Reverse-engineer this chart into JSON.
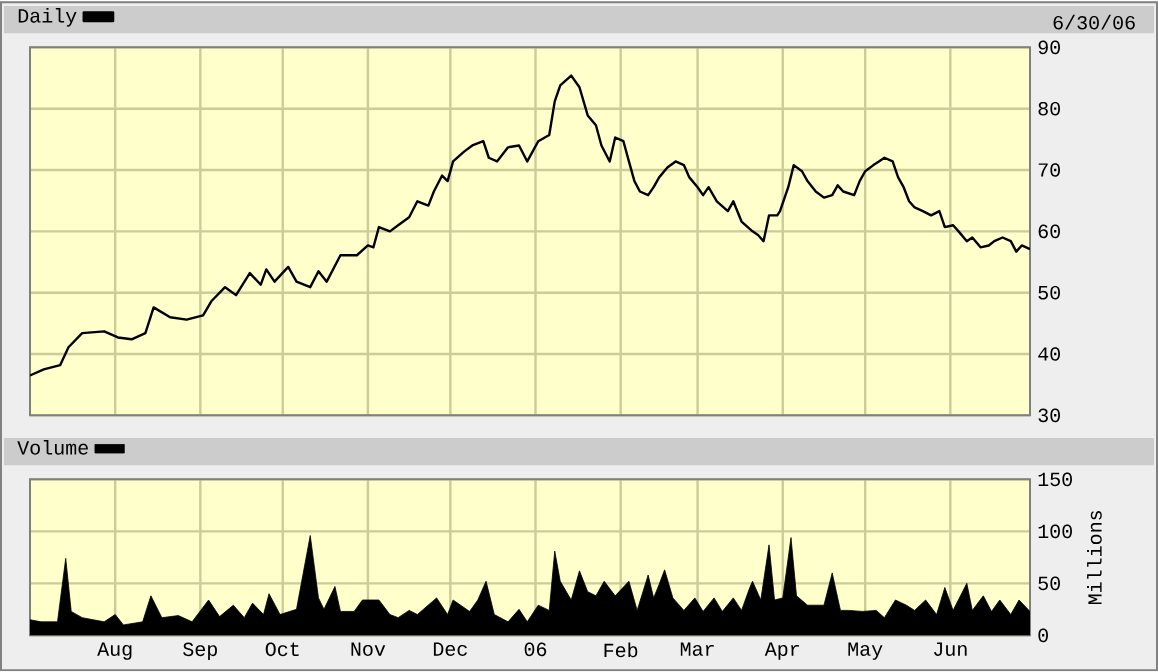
{
  "chart_data": [
    {
      "type": "line",
      "annotations": [
        "6/30/06"
      ],
      "legend": "top left",
      "grid": true,
      "tick_labels": "y",
      "x": [
        "2005-07-01",
        "2005-07-06",
        "2005-07-12",
        "2005-07-15",
        "2005-07-20",
        "2005-07-28",
        "2005-08-02",
        "2005-08-07",
        "2005-08-12",
        "2005-08-15",
        "2005-08-21",
        "2005-08-27",
        "2005-09-02",
        "2005-09-05",
        "2005-09-10",
        "2005-09-14",
        "2005-09-19",
        "2005-09-23",
        "2005-09-25",
        "2005-09-28",
        "2005-10-03",
        "2005-10-06",
        "2005-10-11",
        "2005-10-14",
        "2005-10-17",
        "2005-10-22",
        "2005-10-28",
        "2005-11-01",
        "2005-11-03",
        "2005-11-05",
        "2005-11-09",
        "2005-11-12",
        "2005-11-16",
        "2005-11-19",
        "2005-11-23",
        "2005-11-25",
        "2005-11-28",
        "2005-11-30",
        "2005-12-02",
        "2005-12-06",
        "2005-12-09",
        "2005-12-13",
        "2005-12-15",
        "2005-12-18",
        "2005-12-22",
        "2005-12-26",
        "2005-12-29",
        "2006-01-02",
        "2006-01-06",
        "2006-01-08",
        "2006-01-10",
        "2006-01-14",
        "2006-01-17",
        "2006-01-20",
        "2006-01-23",
        "2006-01-25",
        "2006-01-28",
        "2006-01-30",
        "2006-02-02",
        "2006-02-04",
        "2006-02-06",
        "2006-02-08",
        "2006-02-11",
        "2006-02-13",
        "2006-02-15",
        "2006-02-18",
        "2006-02-21",
        "2006-02-24",
        "2006-02-26",
        "2006-03-01",
        "2006-03-03",
        "2006-03-05",
        "2006-03-08",
        "2006-03-12",
        "2006-03-14",
        "2006-03-17",
        "2006-03-21",
        "2006-03-23",
        "2006-03-25",
        "2006-03-27",
        "2006-03-30",
        "2006-03-31",
        "2006-04-03",
        "2006-04-05",
        "2006-04-08",
        "2006-04-10",
        "2006-04-13",
        "2006-04-16",
        "2006-04-19",
        "2006-04-21",
        "2006-04-23",
        "2006-04-27",
        "2006-04-29",
        "2006-05-01",
        "2006-05-04",
        "2006-05-06",
        "2006-05-08",
        "2006-05-11",
        "2006-05-13",
        "2006-05-15",
        "2006-05-17",
        "2006-05-19",
        "2006-05-22",
        "2006-05-25",
        "2006-05-28",
        "2006-05-30",
        "2006-06-02",
        "2006-06-04",
        "2006-06-07",
        "2006-06-09",
        "2006-06-12",
        "2006-06-15",
        "2006-06-17",
        "2006-06-20",
        "2006-06-23",
        "2006-06-25",
        "2006-06-27",
        "2006-06-30"
      ],
      "series": [
        {
          "name": "Daily",
          "color": "#000000",
          "values": [
            36.5,
            37.5,
            38.2,
            41.1,
            43.4,
            43.7,
            42.7,
            42.4,
            43.4,
            47.6,
            46.0,
            45.6,
            46.3,
            48.6,
            50.9,
            49.6,
            53.2,
            51.3,
            53.8,
            51.8,
            54.2,
            51.8,
            50.9,
            53.5,
            51.8,
            56.1,
            56.1,
            57.7,
            57.4,
            60.7,
            60.0,
            61.0,
            62.3,
            64.9,
            64.2,
            66.5,
            69.1,
            68.2,
            71.4,
            73.0,
            74.0,
            74.7,
            72.0,
            71.4,
            73.7,
            74.0,
            71.4,
            74.7,
            75.7,
            81.2,
            83.8,
            85.4,
            83.5,
            78.9,
            77.3,
            74.0,
            71.4,
            75.3,
            74.7,
            71.4,
            68.2,
            66.5,
            65.9,
            67.2,
            68.8,
            70.4,
            71.4,
            70.8,
            68.8,
            67.2,
            65.9,
            67.2,
            64.9,
            63.3,
            64.9,
            61.6,
            60.0,
            59.4,
            58.4,
            62.6,
            62.6,
            63.3,
            67.2,
            70.8,
            69.8,
            68.2,
            66.5,
            65.5,
            65.9,
            67.5,
            66.5,
            65.9,
            68.2,
            69.8,
            70.8,
            71.4,
            72.0,
            71.4,
            68.8,
            67.2,
            64.9,
            63.9,
            63.3,
            62.6,
            63.3,
            60.7,
            61.0,
            60.0,
            58.4,
            59.0,
            57.4,
            57.7,
            58.4,
            59.0,
            58.4,
            56.7,
            57.7,
            57.1
          ]
        }
      ],
      "xlim": [
        "2005-07-01",
        "2006-06-30"
      ],
      "xticks": [
        {
          "value": "2005-08-01",
          "label": null
        },
        {
          "value": "2005-09-01",
          "label": null
        },
        {
          "value": "2005-10-01",
          "label": null
        },
        {
          "value": "2005-11-01",
          "label": null
        },
        {
          "value": "2005-12-01",
          "label": null
        },
        {
          "value": "2006-01-01",
          "label": null
        },
        {
          "value": "2006-02-01",
          "label": null
        },
        {
          "value": "2006-03-01",
          "label": null
        },
        {
          "value": "2006-04-01",
          "label": null
        },
        {
          "value": "2006-05-01",
          "label": null
        },
        {
          "value": "2006-06-01",
          "label": null
        }
      ],
      "ylim": [
        30,
        90
      ],
      "yticks": [
        30,
        40,
        50,
        60,
        70,
        80,
        90
      ]
    },
    {
      "type": "area",
      "ylabel": "Millions",
      "legend": "top left",
      "grid": true,
      "x": [
        "2005-07-01",
        "2005-07-05",
        "2005-07-11",
        "2005-07-14",
        "2005-07-16",
        "2005-07-20",
        "2005-07-28",
        "2005-08-01",
        "2005-08-04",
        "2005-08-11",
        "2005-08-14",
        "2005-08-18",
        "2005-08-24",
        "2005-08-29",
        "2005-09-04",
        "2005-09-08",
        "2005-09-13",
        "2005-09-17",
        "2005-09-20",
        "2005-09-24",
        "2005-09-26",
        "2005-09-30",
        "2005-10-06",
        "2005-10-11",
        "2005-10-14",
        "2005-10-16",
        "2005-10-20",
        "2005-10-22",
        "2005-10-27",
        "2005-10-30",
        "2005-11-02",
        "2005-11-05",
        "2005-11-09",
        "2005-11-12",
        "2005-11-16",
        "2005-11-19",
        "2005-11-26",
        "2005-11-30",
        "2005-12-02",
        "2005-12-08",
        "2005-12-11",
        "2005-12-14",
        "2005-12-17",
        "2005-12-22",
        "2005-12-26",
        "2005-12-29",
        "2006-01-02",
        "2006-01-06",
        "2006-01-08",
        "2006-01-10",
        "2006-01-14",
        "2006-01-17",
        "2006-01-20",
        "2006-01-23",
        "2006-01-26",
        "2006-01-30",
        "2006-02-04",
        "2006-02-07",
        "2006-02-11",
        "2006-02-13",
        "2006-02-15",
        "2006-02-17",
        "2006-02-20",
        "2006-02-24",
        "2006-02-28",
        "2006-03-03",
        "2006-03-07",
        "2006-03-10",
        "2006-03-14",
        "2006-03-17",
        "2006-03-20",
        "2006-03-21",
        "2006-03-24",
        "2006-03-27",
        "2006-03-29",
        "2006-04-01",
        "2006-04-04",
        "2006-04-06",
        "2006-04-10",
        "2006-04-16",
        "2006-04-19",
        "2006-04-22",
        "2006-04-25",
        "2006-04-30",
        "2006-05-05",
        "2006-05-08",
        "2006-05-12",
        "2006-05-16",
        "2006-05-19",
        "2006-05-23",
        "2006-05-27",
        "2006-05-30",
        "2006-06-02",
        "2006-06-07",
        "2006-06-09",
        "2006-06-13",
        "2006-06-16",
        "2006-06-19",
        "2006-06-23",
        "2006-06-26",
        "2006-06-30"
      ],
      "series": [
        {
          "name": "Volume",
          "color": "#000000",
          "values": [
            15,
            13,
            13,
            74,
            23,
            17,
            13,
            20,
            10,
            13,
            38,
            17,
            19,
            13,
            34,
            18,
            29,
            17,
            31,
            20,
            40,
            20,
            25,
            96,
            36,
            25,
            47,
            23,
            23,
            34,
            34,
            34,
            20,
            17,
            24,
            20,
            36,
            20,
            34,
            23,
            34,
            52,
            20,
            13,
            25,
            13,
            29,
            24,
            81,
            52,
            34,
            62,
            42,
            38,
            52,
            38,
            52,
            24,
            58,
            36,
            49,
            63,
            36,
            24,
            36,
            23,
            36,
            23,
            36,
            24,
            46,
            52,
            34,
            87,
            34,
            36,
            94,
            38,
            29,
            29,
            60,
            24,
            24,
            23,
            24,
            17,
            34,
            29,
            24,
            34,
            20,
            46,
            24,
            50,
            24,
            38,
            23,
            34,
            20,
            34,
            23
          ]
        }
      ],
      "xlim": [
        "2005-07-01",
        "2006-06-30"
      ],
      "xticks": [
        {
          "value": "2005-08-01",
          "label": "Aug"
        },
        {
          "value": "2005-09-01",
          "label": "Sep"
        },
        {
          "value": "2005-10-01",
          "label": "Oct"
        },
        {
          "value": "2005-11-01",
          "label": "Nov"
        },
        {
          "value": "2005-12-01",
          "label": "Dec"
        },
        {
          "value": "2006-01-01",
          "label": "06"
        },
        {
          "value": "2006-02-01",
          "label": "Feb"
        },
        {
          "value": "2006-03-01",
          "label": "Mar"
        },
        {
          "value": "2006-04-01",
          "label": "Apr"
        },
        {
          "value": "2006-05-01",
          "label": "May"
        },
        {
          "value": "2006-06-01",
          "label": "Jun"
        }
      ],
      "ylim": [
        0,
        150
      ],
      "yticks": [
        0,
        50,
        100,
        150
      ]
    }
  ]
}
